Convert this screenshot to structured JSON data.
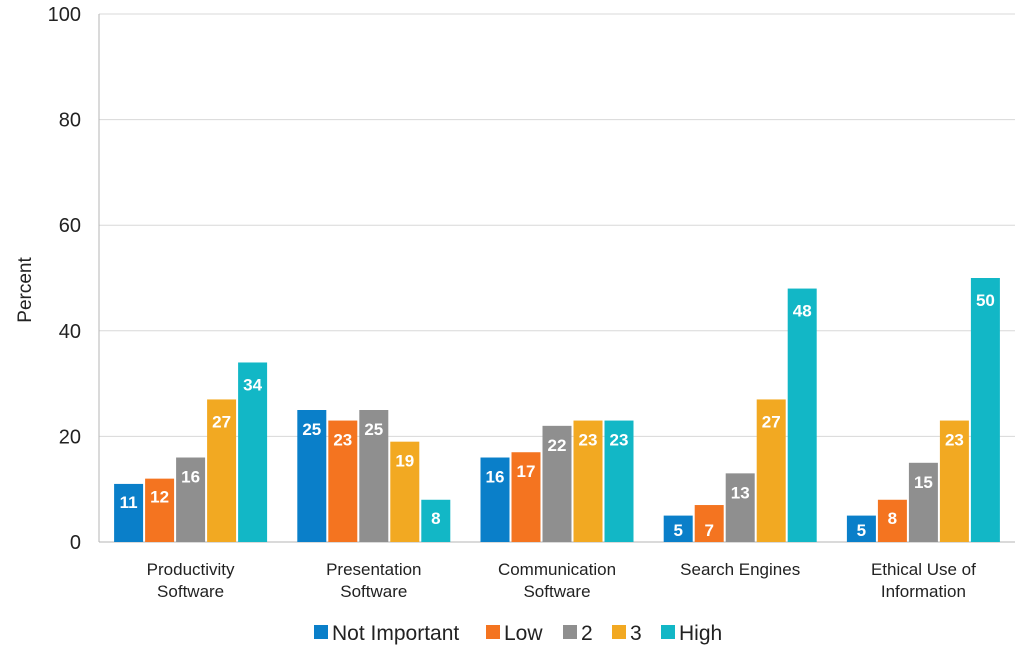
{
  "chart_data": {
    "type": "bar",
    "title": "",
    "xlabel": "",
    "ylabel": "Percent",
    "ylim": [
      0,
      100
    ],
    "yticks": [
      0,
      20,
      40,
      60,
      80,
      100
    ],
    "grid": true,
    "legend_position": "bottom",
    "categories": [
      [
        "Productivity",
        "Software"
      ],
      [
        "Presentation",
        "Software"
      ],
      [
        "Communication",
        "Software"
      ],
      [
        "Search Engines"
      ],
      [
        "Ethical Use of",
        "Information"
      ]
    ],
    "series": [
      {
        "name": "Not Important",
        "color": "#0a7fc9",
        "values": [
          11,
          25,
          16,
          5,
          5
        ],
        "labels": [
          "11",
          "25",
          "16",
          "5",
          "5"
        ]
      },
      {
        "name": "Low",
        "color": "#f47420",
        "values": [
          12,
          23,
          17,
          7,
          8
        ],
        "labels": [
          "12",
          "23",
          "17",
          "7",
          "8"
        ]
      },
      {
        "name": "2",
        "color": "#8f8f8f",
        "values": [
          16,
          25,
          22,
          13,
          15
        ],
        "labels": [
          "16",
          "25",
          "22",
          "13",
          "15"
        ]
      },
      {
        "name": "3",
        "color": "#f2a922",
        "values": [
          27,
          19,
          23,
          27,
          23
        ],
        "labels": [
          "27",
          "19",
          "23",
          "27",
          "23"
        ]
      },
      {
        "name": "High",
        "color": "#12b7c6",
        "values": [
          34,
          8,
          23,
          48,
          50
        ],
        "labels": [
          "34",
          "8",
          "23",
          "48",
          "50"
        ]
      }
    ]
  }
}
